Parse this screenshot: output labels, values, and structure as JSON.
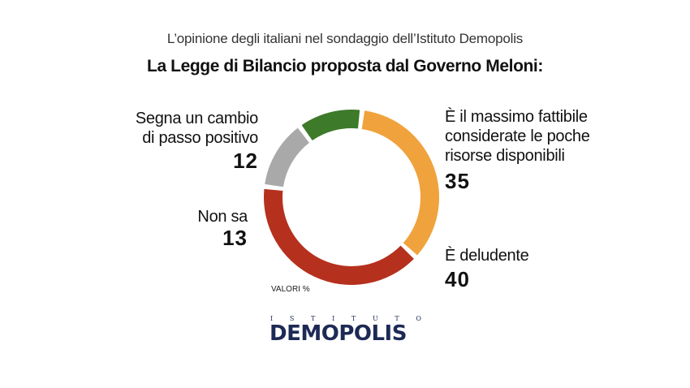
{
  "header": {
    "subtitle": "L’opinione degli italiani nel sondaggio dell’Istituto Demopolis",
    "title": "La Legge di Bilancio proposta dal Governo Meloni:"
  },
  "chart_data": {
    "type": "pie",
    "style": "donut",
    "unit_note": "VALORI %",
    "slices": [
      {
        "label": "È il massimo fattibile considerate le poche risorse disponibili",
        "value": 35,
        "color": "#F0A23C"
      },
      {
        "label": "È deludente",
        "value": 40,
        "color": "#B5311E"
      },
      {
        "label": "Non sa",
        "value": 13,
        "color": "#A9A9A9"
      },
      {
        "label": "Segna un cambio di passo positivo",
        "value": 12,
        "color": "#3D7A2A"
      }
    ]
  },
  "labels": {
    "massimo": {
      "line1": "È il massimo fattibile",
      "line2": "considerate le poche",
      "line3": "risorse disponibili",
      "value": "35"
    },
    "deludente": {
      "line1": "È deludente",
      "value": "40"
    },
    "nonsa": {
      "line1": "Non sa",
      "value": "13"
    },
    "cambio": {
      "line1": "Segna un cambio",
      "line2": "di passo positivo",
      "value": "12"
    }
  },
  "logo": {
    "top": [
      "I",
      "S",
      "T",
      "I",
      "T",
      "U",
      "T",
      "O"
    ],
    "main": "DEMOPOLIS",
    "colors": {
      "text": "#1D2A55",
      "accent": "#D98A1C"
    }
  }
}
